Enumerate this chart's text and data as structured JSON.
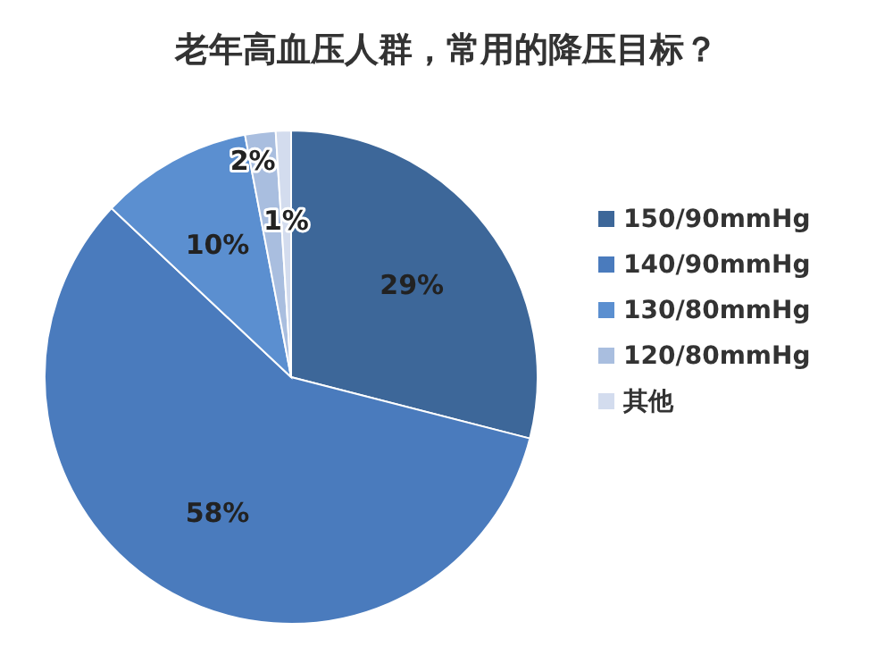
{
  "chart_data": {
    "type": "pie",
    "title": "老年高血压人群，常用的降压目标？",
    "categories": [
      "150/90mmHg",
      "140/90mmHg",
      "130/80mmHg",
      "120/80mmHg",
      "其他"
    ],
    "values": [
      29,
      58,
      10,
      2,
      1
    ],
    "colors": [
      "#3d6799",
      "#4a7bbd",
      "#5b8fd0",
      "#a9bedf",
      "#d3dcee"
    ],
    "value_labels": [
      "29%",
      "58%",
      "10%",
      "2%",
      "1%"
    ],
    "legend": "right"
  }
}
